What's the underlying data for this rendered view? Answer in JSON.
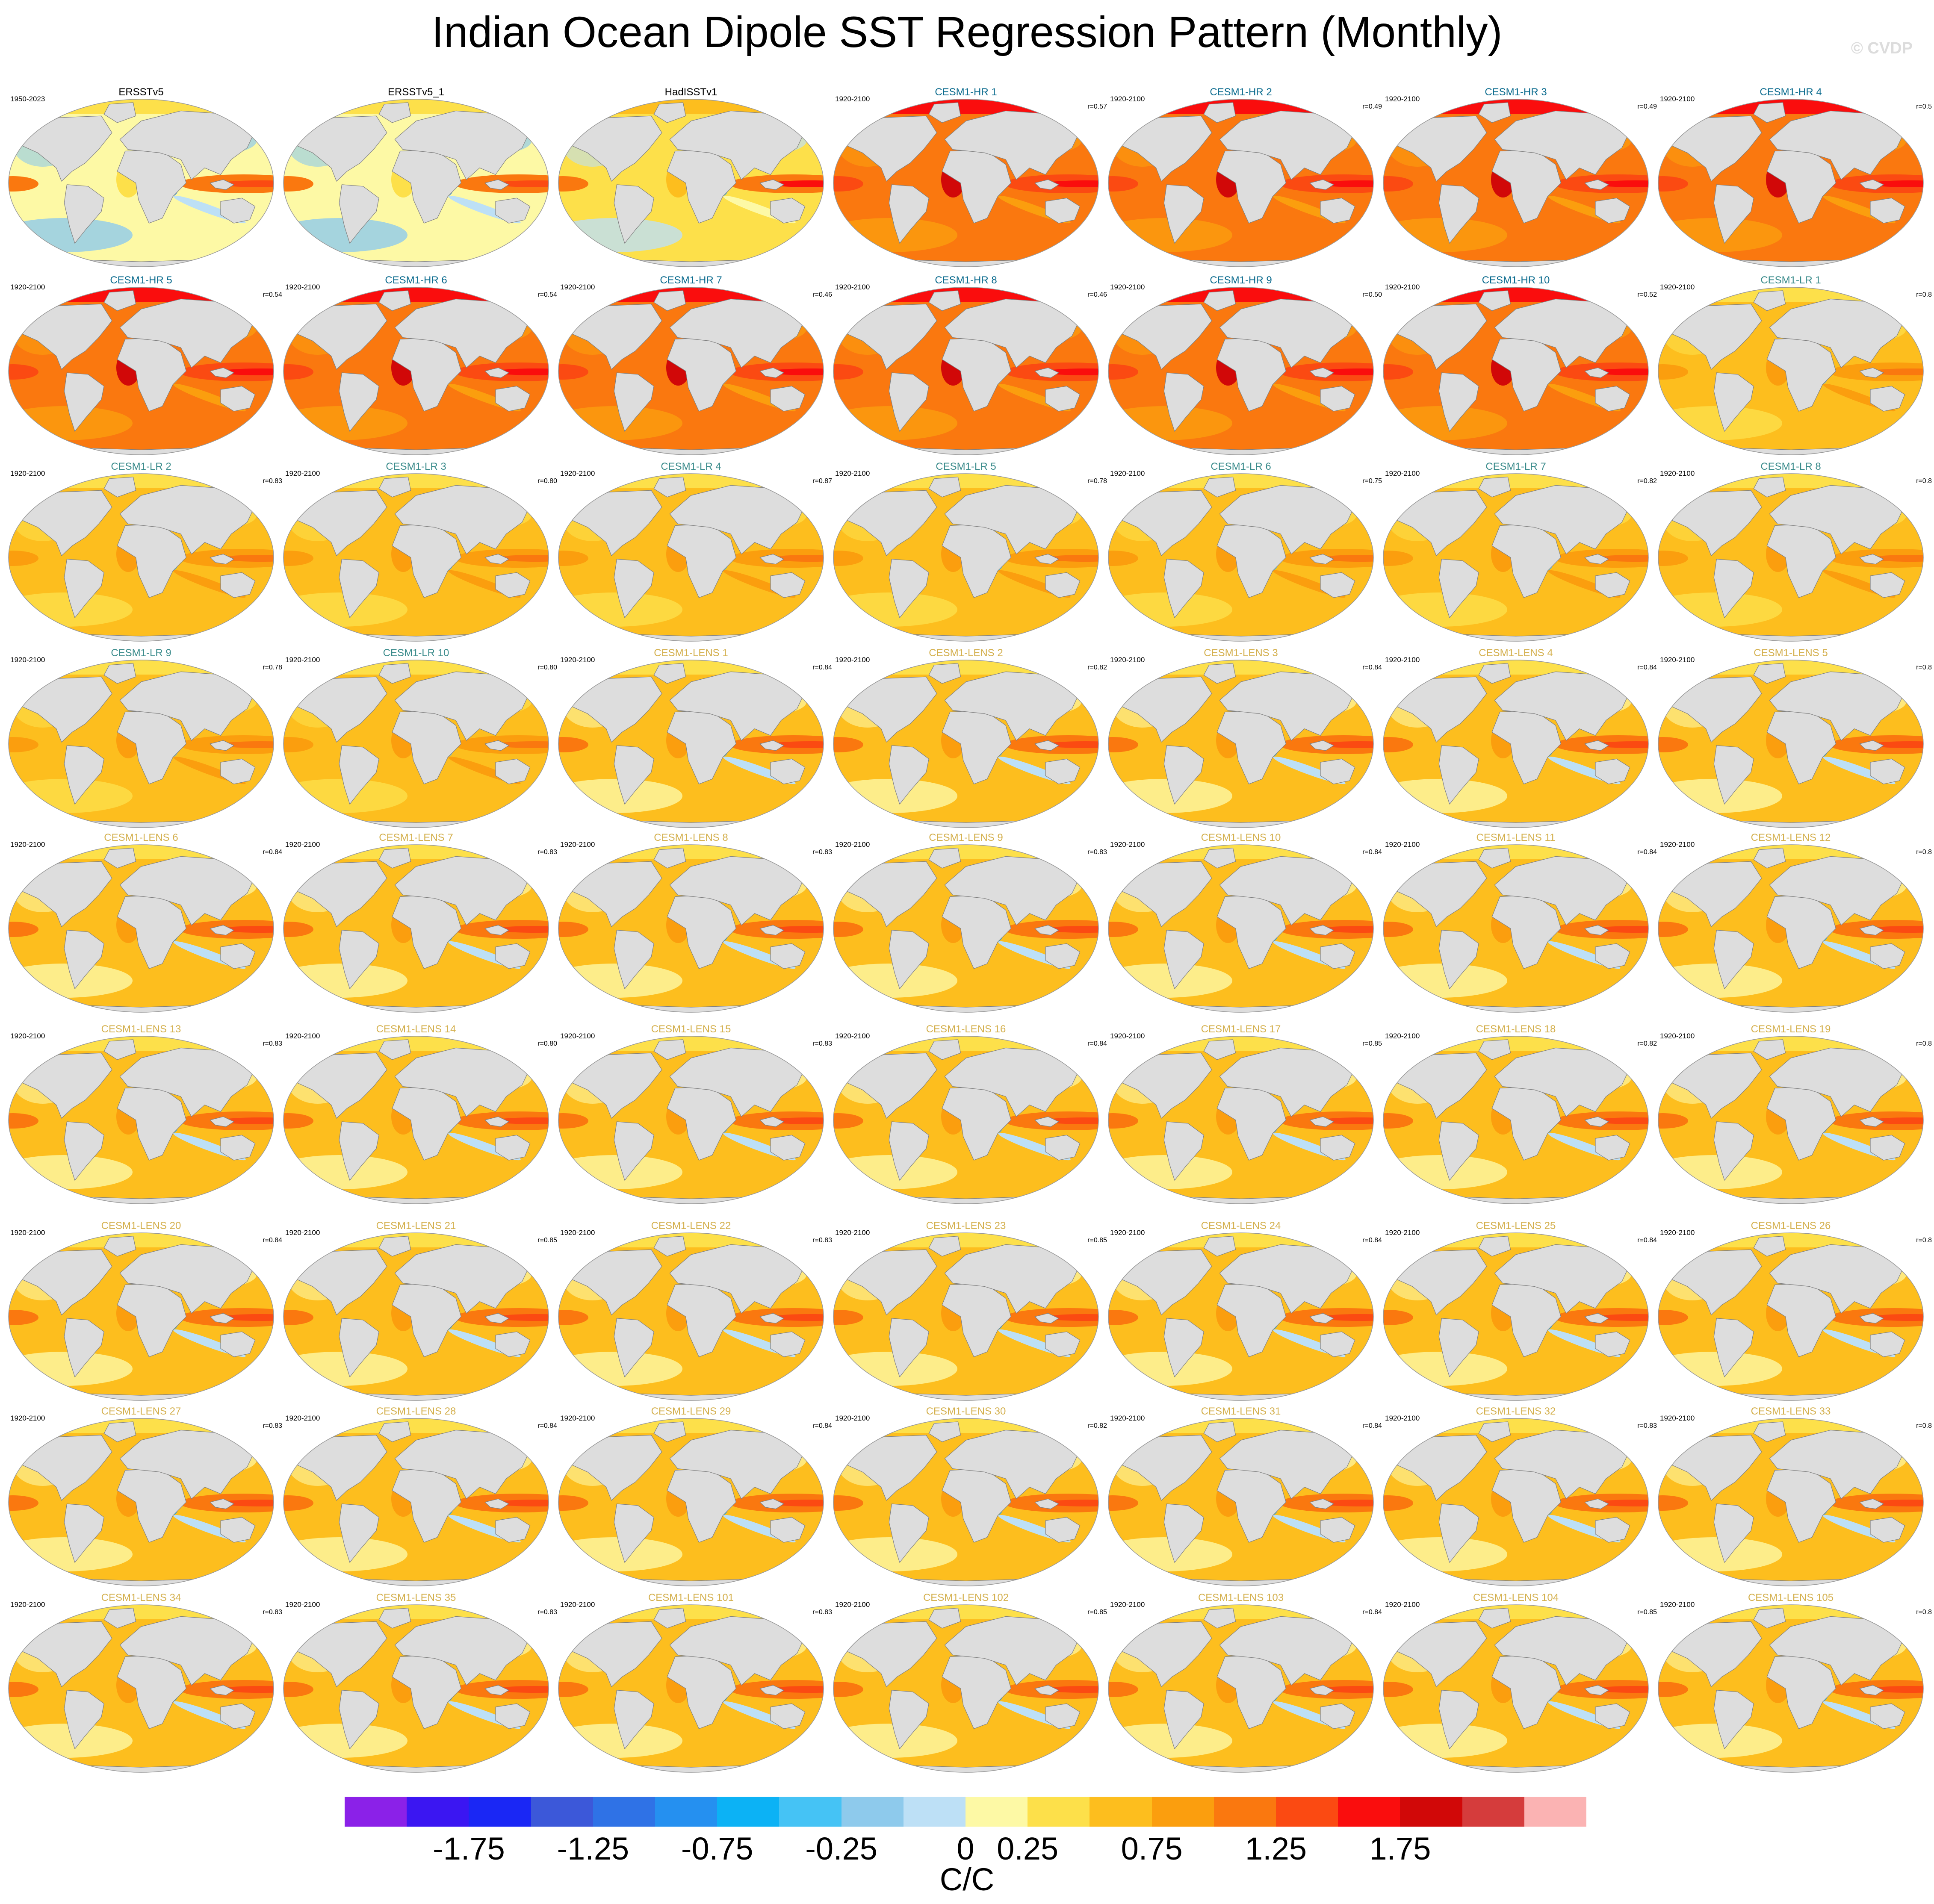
{
  "title": "Indian Ocean Dipole SST Regression Pattern (Monthly)",
  "watermark": "© CVDP",
  "colors": {
    "obs_title": "#000000",
    "hr_title": "#0b6b8e",
    "lr_title": "#3a8b8b",
    "lens_title": "#d4b04e",
    "land": "#dddddd",
    "coast": "#808080"
  },
  "panels": [
    {
      "label": "ERSSTv5",
      "years": "1950-2023",
      "r": "",
      "group": "obs",
      "pattern": "obs"
    },
    {
      "label": "ERSSTv5_1",
      "years": "",
      "r": "",
      "group": "obs",
      "pattern": "obs"
    },
    {
      "label": "HadISSTv1",
      "years": "",
      "r": "",
      "group": "obs",
      "pattern": "obs2"
    },
    {
      "label": "CESM1-HR 1",
      "years": "1920-2100",
      "r": "r=0.57",
      "group": "hr",
      "pattern": "hr"
    },
    {
      "label": "CESM1-HR 2",
      "years": "1920-2100",
      "r": "r=0.49",
      "group": "hr",
      "pattern": "hr"
    },
    {
      "label": "CESM1-HR 3",
      "years": "1920-2100",
      "r": "r=0.49",
      "group": "hr",
      "pattern": "hr"
    },
    {
      "label": "CESM1-HR 4",
      "years": "1920-2100",
      "r": "r=0.5",
      "group": "hr",
      "pattern": "hr"
    },
    {
      "label": "CESM1-HR 5",
      "years": "1920-2100",
      "r": "r=0.54",
      "group": "hr",
      "pattern": "hr"
    },
    {
      "label": "CESM1-HR 6",
      "years": "1920-2100",
      "r": "r=0.54",
      "group": "hr",
      "pattern": "hr"
    },
    {
      "label": "CESM1-HR 7",
      "years": "1920-2100",
      "r": "r=0.46",
      "group": "hr",
      "pattern": "hr"
    },
    {
      "label": "CESM1-HR 8",
      "years": "1920-2100",
      "r": "r=0.46",
      "group": "hr",
      "pattern": "hr"
    },
    {
      "label": "CESM1-HR 9",
      "years": "1920-2100",
      "r": "r=0.50",
      "group": "hr",
      "pattern": "hr"
    },
    {
      "label": "CESM1-HR 10",
      "years": "1920-2100",
      "r": "r=0.52",
      "group": "hr",
      "pattern": "hr"
    },
    {
      "label": "CESM1-LR 1",
      "years": "1920-2100",
      "r": "r=0.8",
      "group": "lr",
      "pattern": "lr"
    },
    {
      "label": "CESM1-LR 2",
      "years": "1920-2100",
      "r": "r=0.83",
      "group": "lr",
      "pattern": "lr"
    },
    {
      "label": "CESM1-LR 3",
      "years": "1920-2100",
      "r": "r=0.80",
      "group": "lr",
      "pattern": "lr"
    },
    {
      "label": "CESM1-LR 4",
      "years": "1920-2100",
      "r": "r=0.87",
      "group": "lr",
      "pattern": "lr"
    },
    {
      "label": "CESM1-LR 5",
      "years": "1920-2100",
      "r": "r=0.78",
      "group": "lr",
      "pattern": "lr"
    },
    {
      "label": "CESM1-LR 6",
      "years": "1920-2100",
      "r": "r=0.75",
      "group": "lr",
      "pattern": "lr"
    },
    {
      "label": "CESM1-LR 7",
      "years": "1920-2100",
      "r": "r=0.82",
      "group": "lr",
      "pattern": "lr"
    },
    {
      "label": "CESM1-LR 8",
      "years": "1920-2100",
      "r": "r=0.8",
      "group": "lr",
      "pattern": "lr"
    },
    {
      "label": "CESM1-LR 9",
      "years": "1920-2100",
      "r": "r=0.78",
      "group": "lr",
      "pattern": "lr"
    },
    {
      "label": "CESM1-LR 10",
      "years": "1920-2100",
      "r": "r=0.80",
      "group": "lr",
      "pattern": "lr"
    },
    {
      "label": "CESM1-LENS 1",
      "years": "1920-2100",
      "r": "r=0.84",
      "group": "lens",
      "pattern": "lens"
    },
    {
      "label": "CESM1-LENS 2",
      "years": "1920-2100",
      "r": "r=0.82",
      "group": "lens",
      "pattern": "lens"
    },
    {
      "label": "CESM1-LENS 3",
      "years": "1920-2100",
      "r": "r=0.84",
      "group": "lens",
      "pattern": "lens"
    },
    {
      "label": "CESM1-LENS 4",
      "years": "1920-2100",
      "r": "r=0.84",
      "group": "lens",
      "pattern": "lens"
    },
    {
      "label": "CESM1-LENS 5",
      "years": "1920-2100",
      "r": "r=0.8",
      "group": "lens",
      "pattern": "lens"
    },
    {
      "label": "CESM1-LENS 6",
      "years": "1920-2100",
      "r": "r=0.84",
      "group": "lens",
      "pattern": "lens"
    },
    {
      "label": "CESM1-LENS 7",
      "years": "1920-2100",
      "r": "r=0.83",
      "group": "lens",
      "pattern": "lens"
    },
    {
      "label": "CESM1-LENS 8",
      "years": "1920-2100",
      "r": "r=0.83",
      "group": "lens",
      "pattern": "lens"
    },
    {
      "label": "CESM1-LENS 9",
      "years": "1920-2100",
      "r": "r=0.83",
      "group": "lens",
      "pattern": "lens"
    },
    {
      "label": "CESM1-LENS 10",
      "years": "1920-2100",
      "r": "r=0.84",
      "group": "lens",
      "pattern": "lens"
    },
    {
      "label": "CESM1-LENS 11",
      "years": "1920-2100",
      "r": "r=0.84",
      "group": "lens",
      "pattern": "lens"
    },
    {
      "label": "CESM1-LENS 12",
      "years": "1920-2100",
      "r": "r=0.8",
      "group": "lens",
      "pattern": "lens"
    },
    {
      "label": "CESM1-LENS 13",
      "years": "1920-2100",
      "r": "r=0.83",
      "group": "lens",
      "pattern": "lens"
    },
    {
      "label": "CESM1-LENS 14",
      "years": "1920-2100",
      "r": "r=0.80",
      "group": "lens",
      "pattern": "lens"
    },
    {
      "label": "CESM1-LENS 15",
      "years": "1920-2100",
      "r": "r=0.83",
      "group": "lens",
      "pattern": "lens"
    },
    {
      "label": "CESM1-LENS 16",
      "years": "1920-2100",
      "r": "r=0.84",
      "group": "lens",
      "pattern": "lens"
    },
    {
      "label": "CESM1-LENS 17",
      "years": "1920-2100",
      "r": "r=0.85",
      "group": "lens",
      "pattern": "lens"
    },
    {
      "label": "CESM1-LENS 18",
      "years": "1920-2100",
      "r": "r=0.82",
      "group": "lens",
      "pattern": "lens"
    },
    {
      "label": "CESM1-LENS 19",
      "years": "1920-2100",
      "r": "r=0.8",
      "group": "lens",
      "pattern": "lens"
    },
    {
      "label": "CESM1-LENS 20",
      "years": "1920-2100",
      "r": "r=0.84",
      "group": "lens",
      "pattern": "lens"
    },
    {
      "label": "CESM1-LENS 21",
      "years": "1920-2100",
      "r": "r=0.85",
      "group": "lens",
      "pattern": "lens"
    },
    {
      "label": "CESM1-LENS 22",
      "years": "1920-2100",
      "r": "r=0.83",
      "group": "lens",
      "pattern": "lens"
    },
    {
      "label": "CESM1-LENS 23",
      "years": "1920-2100",
      "r": "r=0.85",
      "group": "lens",
      "pattern": "lens"
    },
    {
      "label": "CESM1-LENS 24",
      "years": "1920-2100",
      "r": "r=0.84",
      "group": "lens",
      "pattern": "lens"
    },
    {
      "label": "CESM1-LENS 25",
      "years": "1920-2100",
      "r": "r=0.84",
      "group": "lens",
      "pattern": "lens"
    },
    {
      "label": "CESM1-LENS 26",
      "years": "1920-2100",
      "r": "r=0.8",
      "group": "lens",
      "pattern": "lens"
    },
    {
      "label": "CESM1-LENS 27",
      "years": "1920-2100",
      "r": "r=0.83",
      "group": "lens",
      "pattern": "lens"
    },
    {
      "label": "CESM1-LENS 28",
      "years": "1920-2100",
      "r": "r=0.84",
      "group": "lens",
      "pattern": "lens"
    },
    {
      "label": "CESM1-LENS 29",
      "years": "1920-2100",
      "r": "r=0.84",
      "group": "lens",
      "pattern": "lens"
    },
    {
      "label": "CESM1-LENS 30",
      "years": "1920-2100",
      "r": "r=0.82",
      "group": "lens",
      "pattern": "lens"
    },
    {
      "label": "CESM1-LENS 31",
      "years": "1920-2100",
      "r": "r=0.84",
      "group": "lens",
      "pattern": "lens"
    },
    {
      "label": "CESM1-LENS 32",
      "years": "1920-2100",
      "r": "r=0.83",
      "group": "lens",
      "pattern": "lens"
    },
    {
      "label": "CESM1-LENS 33",
      "years": "1920-2100",
      "r": "r=0.8",
      "group": "lens",
      "pattern": "lens"
    },
    {
      "label": "CESM1-LENS 34",
      "years": "1920-2100",
      "r": "r=0.83",
      "group": "lens",
      "pattern": "lens"
    },
    {
      "label": "CESM1-LENS 35",
      "years": "1920-2100",
      "r": "r=0.83",
      "group": "lens",
      "pattern": "lens"
    },
    {
      "label": "CESM1-LENS 101",
      "years": "1920-2100",
      "r": "r=0.83",
      "group": "lens",
      "pattern": "lens"
    },
    {
      "label": "CESM1-LENS 102",
      "years": "1920-2100",
      "r": "r=0.85",
      "group": "lens",
      "pattern": "lens"
    },
    {
      "label": "CESM1-LENS 103",
      "years": "1920-2100",
      "r": "r=0.84",
      "group": "lens",
      "pattern": "lens"
    },
    {
      "label": "CESM1-LENS 104",
      "years": "1920-2100",
      "r": "r=0.85",
      "group": "lens",
      "pattern": "lens"
    },
    {
      "label": "CESM1-LENS 105",
      "years": "1920-2100",
      "r": "r=0.8",
      "group": "lens",
      "pattern": "lens"
    }
  ],
  "colorbar": {
    "units": "C/C",
    "colors": [
      "#8b21e8",
      "#3b16f2",
      "#1a27f5",
      "#3c58d9",
      "#2f72e6",
      "#2590f0",
      "#0cb2f5",
      "#45c3f5",
      "#8ecaec",
      "#bde0f6",
      "#fdf9a5",
      "#fde04a",
      "#fdbe1e",
      "#fb9e0e",
      "#fa780f",
      "#fb4a12",
      "#fa0d0d",
      "#d10808",
      "#d53c3c",
      "#fbb3b3"
    ],
    "tick_labels": [
      "-1.75",
      "-1.25",
      "-0.75",
      "-0.25",
      "0",
      "0.25",
      "0.75",
      "1.25",
      "1.75"
    ]
  }
}
